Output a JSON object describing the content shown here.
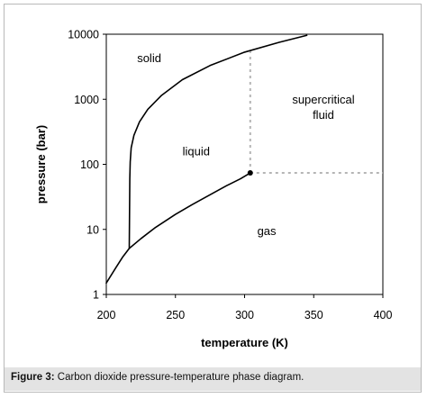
{
  "chart_data": {
    "type": "line",
    "title": "",
    "xlabel": "temperature (K)",
    "ylabel": "pressure (bar)",
    "xlim": [
      200,
      400
    ],
    "ylim": [
      1,
      10000
    ],
    "yscale": "log",
    "x_ticks": [
      "200",
      "250",
      "300",
      "350",
      "400"
    ],
    "y_ticks": [
      "1",
      "10",
      "100",
      "1000",
      "10000"
    ],
    "grid": false,
    "series": [
      {
        "x": [
          200,
          207,
          212,
          216.6,
          225,
          235,
          250,
          262,
          275,
          287,
          297,
          304.1
        ],
        "y": [
          1.5,
          2.6,
          3.8,
          5.1,
          7.2,
          10.5,
          17,
          24,
          34,
          47,
          60,
          73.8
        ]
      },
      {
        "x": [
          216.6,
          217.0,
          217.3,
          218,
          220,
          224,
          230,
          240,
          255,
          275,
          300,
          325,
          345
        ],
        "y": [
          5.1,
          60,
          110,
          180,
          280,
          450,
          700,
          1150,
          2000,
          3300,
          5300,
          7500,
          9600
        ]
      }
    ],
    "critical_point": {
      "x": 304.1,
      "y": 73.8
    },
    "dotted_lines": [
      {
        "x": [
          304.1,
          304.1
        ],
        "y": [
          73.8,
          5600
        ]
      },
      {
        "x": [
          304.1,
          400
        ],
        "y": [
          73.8,
          73.8
        ]
      }
    ],
    "annotations": [
      {
        "text": "solid",
        "x": 231,
        "y": 4300
      },
      {
        "text": "liquid",
        "x": 265,
        "y": 160
      },
      {
        "text": "supercritical",
        "x": 357,
        "y": 1000
      },
      {
        "text": "fluid",
        "x": 357,
        "y": 580
      },
      {
        "text": "gas",
        "x": 316,
        "y": 9.5
      }
    ]
  },
  "caption": {
    "label": "Figure 3:",
    "text": " Carbon dioxide pressure-temperature phase diagram."
  }
}
